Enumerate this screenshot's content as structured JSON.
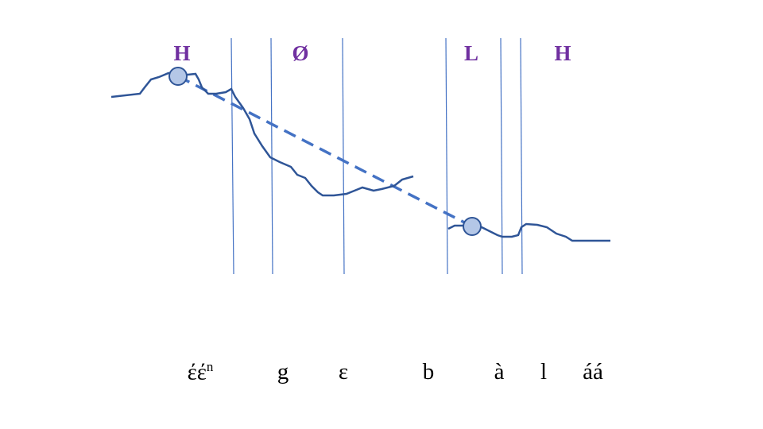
{
  "colors": {
    "tone_label": "#7030a0",
    "pitch_line": "#2f5597",
    "boundary_line": "#4472c4",
    "dashed_line": "#4472c4",
    "target_fill": "#b4c7e7",
    "target_stroke": "#2f5597"
  },
  "tones": [
    {
      "label": "H"
    },
    {
      "label": "Ø"
    },
    {
      "label": "L"
    },
    {
      "label": "H"
    }
  ],
  "segments": [
    {
      "text": "έέ",
      "sup": "n"
    },
    {
      "text": "g",
      "sup": ""
    },
    {
      "text": "ɛ",
      "sup": ""
    },
    {
      "text": "b",
      "sup": ""
    },
    {
      "text": "à",
      "sup": ""
    },
    {
      "text": "l",
      "sup": ""
    },
    {
      "text": "áá",
      "sup": ""
    }
  ],
  "targets": [
    {
      "name": "high-target"
    },
    {
      "name": "low-target"
    }
  ]
}
